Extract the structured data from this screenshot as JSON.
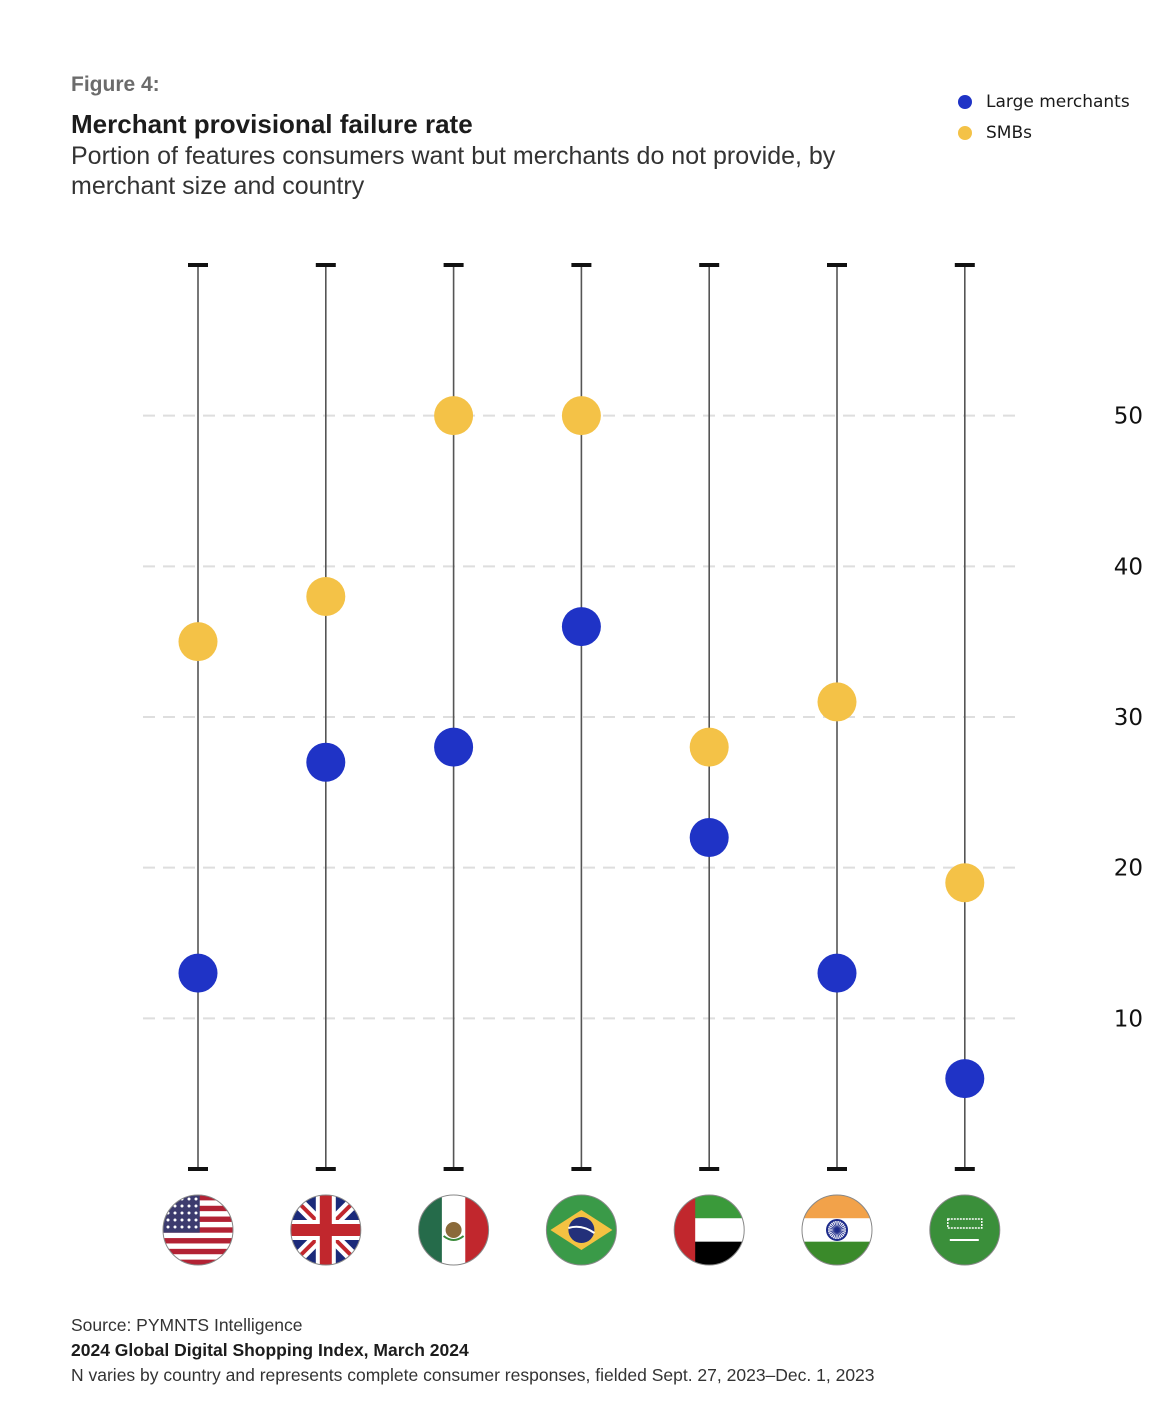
{
  "header": {
    "figure_label": "Figure 4:",
    "title": "Merchant provisional failure rate",
    "subtitle": "Portion of features consumers want but merchants do not provide, by merchant size and country"
  },
  "legend": [
    {
      "label": "Large merchants",
      "color": "#1f33c6"
    },
    {
      "label": "SMBs",
      "color": "#f4c247"
    }
  ],
  "footer": {
    "source": "Source: PYMNTS Intelligence",
    "report": "2024 Global Digital Shopping Index, March 2024",
    "note": "N varies by country and represents complete consumer responses, fielded Sept. 27, 2023–Dec. 1, 2023"
  },
  "chart_data": {
    "type": "scatter",
    "title": "Merchant provisional failure rate",
    "subtitle": "Portion of features consumers want but merchants do not provide, by merchant size and country",
    "xlabel": "",
    "ylabel": "",
    "categories": [
      "United States",
      "United Kingdom",
      "Mexico",
      "Brazil",
      "United Arab Emirates",
      "India",
      "Saudi Arabia"
    ],
    "category_icons": [
      "us-flag-icon",
      "uk-flag-icon",
      "mexico-flag-icon",
      "brazil-flag-icon",
      "uae-flag-icon",
      "india-flag-icon",
      "saudi-arabia-flag-icon"
    ],
    "series": [
      {
        "name": "Large merchants",
        "color": "#1f33c6",
        "values": [
          13,
          27,
          28,
          36,
          22,
          13,
          6
        ]
      },
      {
        "name": "SMBs",
        "color": "#f4c247",
        "values": [
          35,
          38,
          50,
          50,
          28,
          31,
          19
        ]
      }
    ],
    "yticks": [
      10,
      20,
      30,
      40,
      50
    ],
    "ylim": [
      0,
      60
    ],
    "grid": true,
    "grid_style": "dashed horizontal",
    "yaxis_position": "right",
    "legend_position": "top-right"
  }
}
